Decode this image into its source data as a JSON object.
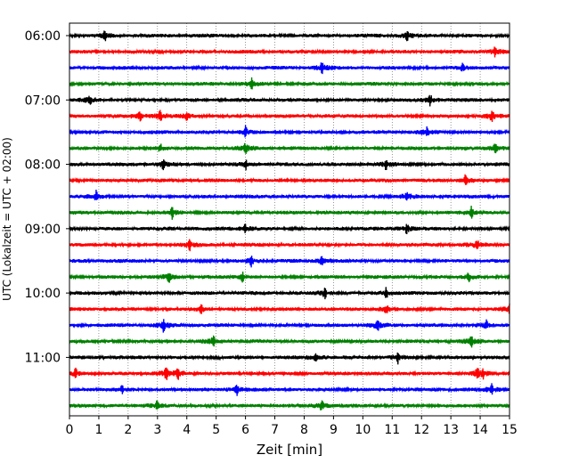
{
  "chart_data": {
    "type": "line",
    "subtype": "helicorder",
    "title": "",
    "xlabel": "Zeit  [min]",
    "ylabel": "UTC (Lokalzeit = UTC + 02:00)",
    "xlim": [
      0,
      15
    ],
    "xticks": [
      "0",
      "1",
      "2",
      "3",
      "4",
      "5",
      "6",
      "7",
      "8",
      "9",
      "10",
      "11",
      "12",
      "13",
      "14",
      "15"
    ],
    "ytick_labels": [
      "06:00",
      "07:00",
      "08:00",
      "09:00",
      "10:00",
      "11:00"
    ],
    "row_interval_minutes": 15,
    "vertical_grid": "dotted",
    "trace_colors": [
      "#000000",
      "#ff0000",
      "#0000ff",
      "#008000"
    ],
    "rows": [
      {
        "start": "06:00",
        "spikes": [
          1.2,
          11.5
        ]
      },
      {
        "start": "06:15",
        "spikes": [
          14.5
        ]
      },
      {
        "start": "06:30",
        "spikes": [
          8.6,
          13.4
        ]
      },
      {
        "start": "06:45",
        "spikes": [
          6.2
        ]
      },
      {
        "start": "07:00",
        "spikes": [
          0.7,
          12.3
        ]
      },
      {
        "start": "07:15",
        "spikes": [
          2.4,
          3.1,
          4.0,
          14.4
        ]
      },
      {
        "start": "07:30",
        "spikes": [
          6.0,
          12.2
        ]
      },
      {
        "start": "07:45",
        "spikes": [
          3.1,
          6.0,
          14.5
        ]
      },
      {
        "start": "08:00",
        "spikes": [
          3.2,
          6.0,
          10.8
        ]
      },
      {
        "start": "08:15",
        "spikes": [
          13.5
        ]
      },
      {
        "start": "08:30",
        "spikes": [
          0.9,
          11.5
        ]
      },
      {
        "start": "08:45",
        "spikes": [
          3.5,
          13.7
        ]
      },
      {
        "start": "09:00",
        "spikes": [
          6.0,
          11.5
        ]
      },
      {
        "start": "09:15",
        "spikes": [
          4.1,
          13.9
        ]
      },
      {
        "start": "09:30",
        "spikes": [
          6.2,
          8.6
        ]
      },
      {
        "start": "09:45",
        "spikes": [
          3.4,
          5.9,
          13.6
        ]
      },
      {
        "start": "10:00",
        "spikes": [
          8.7,
          10.8
        ]
      },
      {
        "start": "10:15",
        "spikes": [
          4.5,
          10.8,
          15.0
        ]
      },
      {
        "start": "10:30",
        "spikes": [
          3.2,
          10.5,
          14.2
        ]
      },
      {
        "start": "10:45",
        "spikes": [
          4.9,
          13.7
        ]
      },
      {
        "start": "11:00",
        "spikes": [
          8.4,
          11.2
        ]
      },
      {
        "start": "11:15",
        "spikes": [
          0.2,
          3.3,
          3.7,
          13.9,
          14.1
        ]
      },
      {
        "start": "11:30",
        "spikes": [
          1.8,
          5.7,
          14.4
        ]
      },
      {
        "start": "11:45",
        "spikes": [
          3.0,
          8.6
        ]
      }
    ]
  }
}
